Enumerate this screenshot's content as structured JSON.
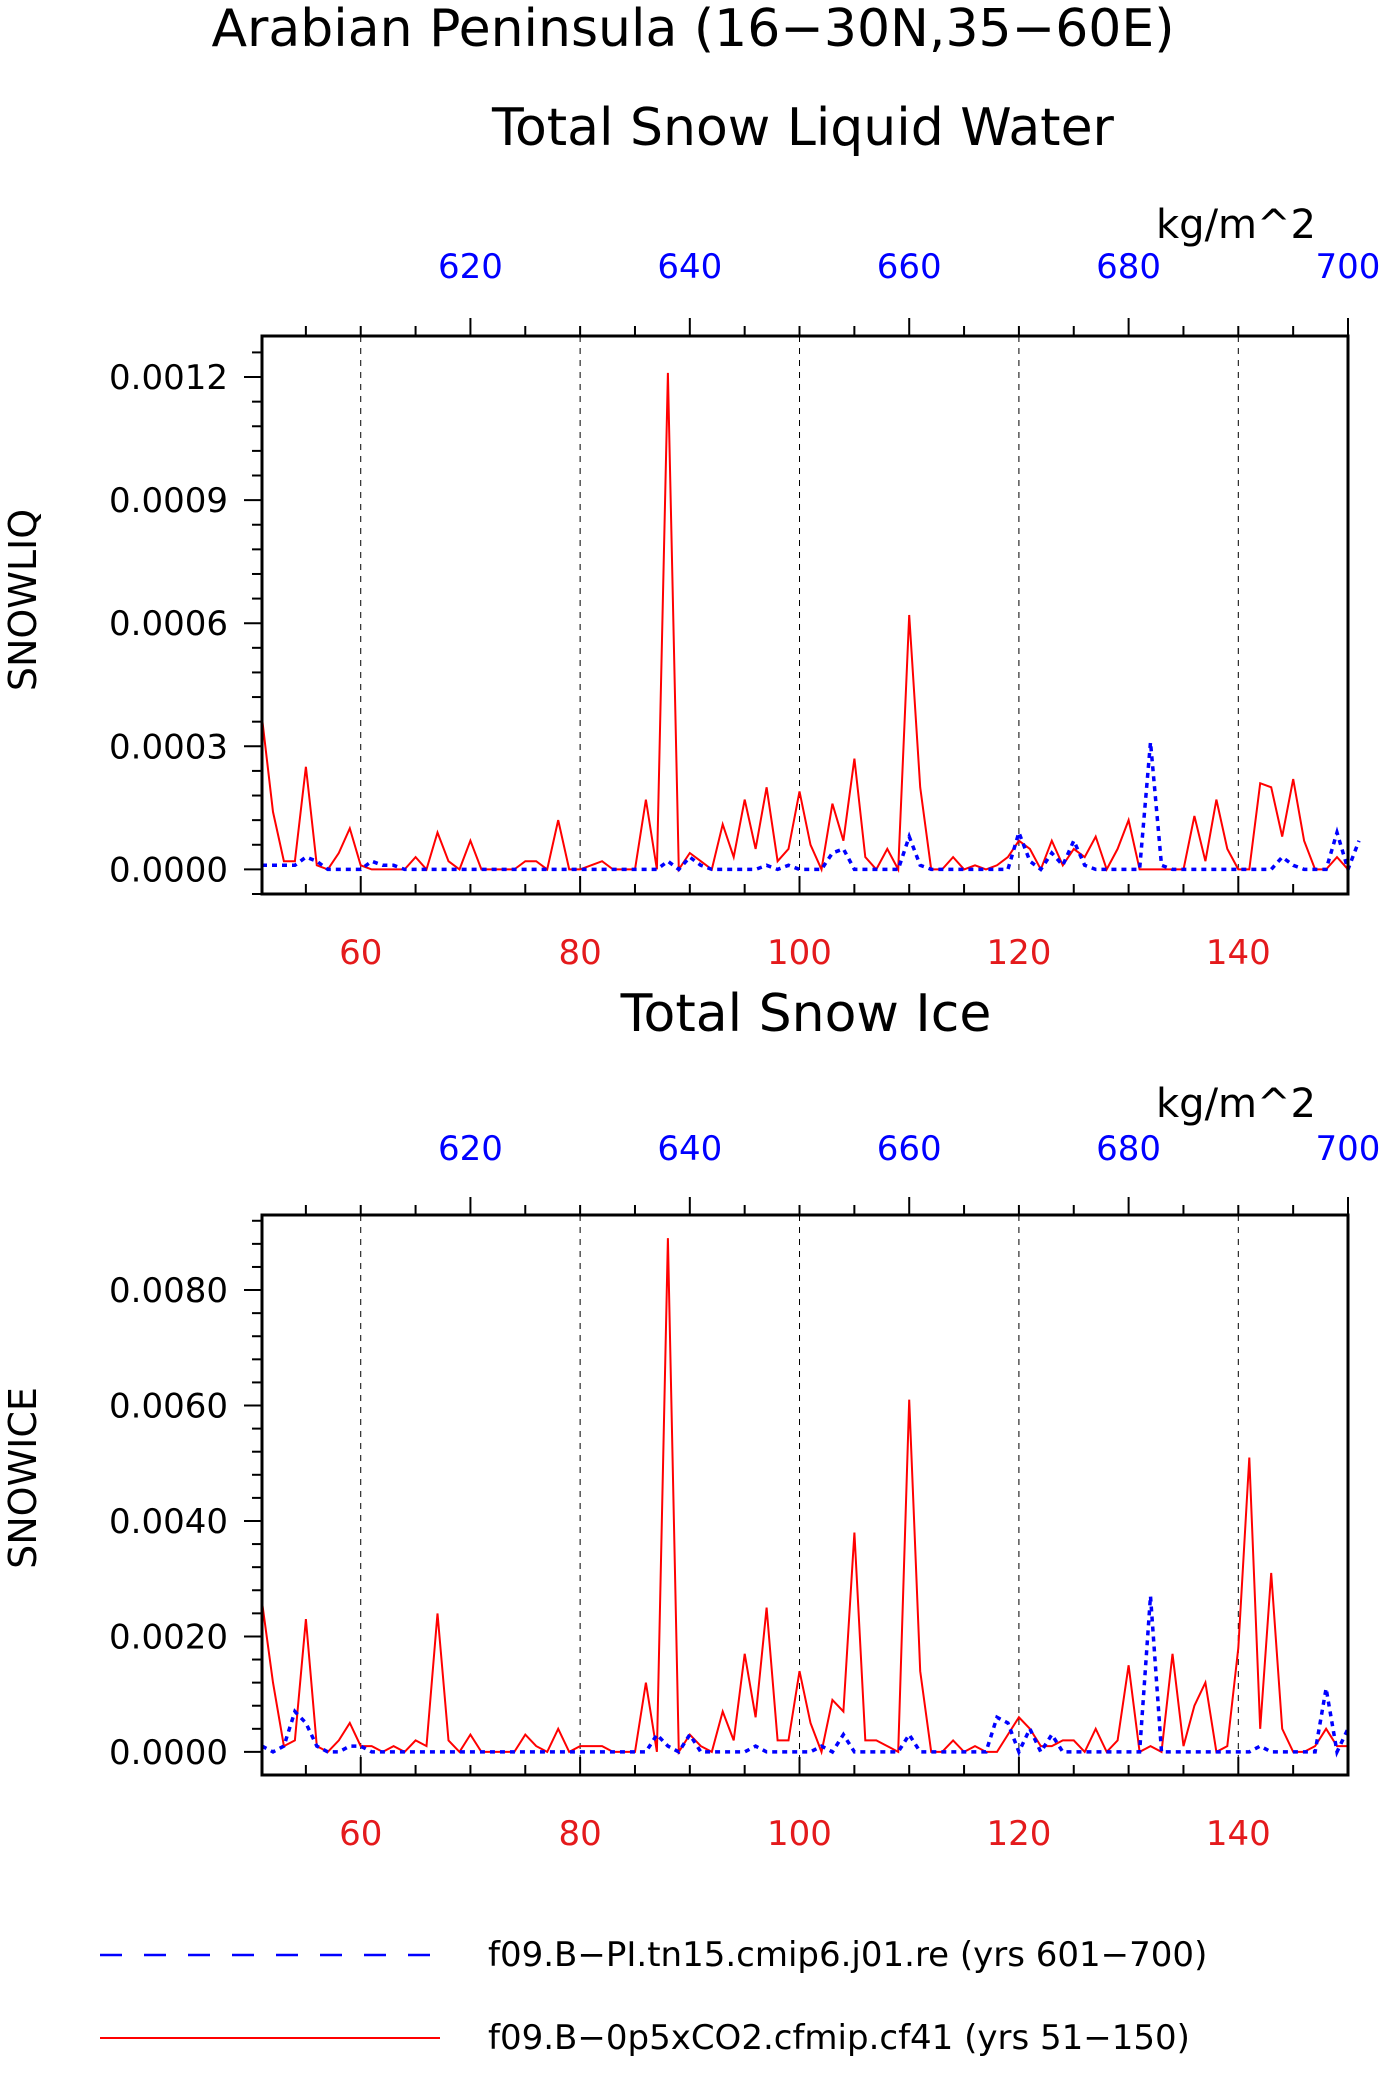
{
  "figure": {
    "title_line1": "Arabian Peninsula (16−30N,35−60E)",
    "colors": {
      "bottom_axis": "#e41a1c",
      "top_axis": "#0000ff",
      "red_series": "#ff0000",
      "blue_series": "#0000ff"
    }
  },
  "chart_data": [
    {
      "type": "line",
      "title": "Total Snow Liquid Water",
      "ylabel": "SNOWLIQ",
      "units": "kg/m^2",
      "xlim_bottom": [
        51,
        150
      ],
      "xlim_top": [
        601,
        700
      ],
      "ylim": [
        -6e-05,
        0.0013
      ],
      "x_ticks_bottom": [
        "60",
        "80",
        "100",
        "120",
        "140"
      ],
      "x_ticks_top": [
        "620",
        "640",
        "660",
        "680",
        "700"
      ],
      "y_ticks": [
        "0.0000",
        "0.0003",
        "0.0006",
        "0.0009",
        "0.0012"
      ],
      "grid": "vertical dashed at major bottom-axis ticks",
      "series": [
        {
          "name": "f09.B−0p5xCO2.cfmip.cf41 (yrs 51−150)",
          "x_start": 51,
          "values": [
            0.00037,
            0.00014,
            2e-05,
            2e-05,
            0.00025,
            1e-05,
            0.0,
            4e-05,
            0.0001,
            1e-05,
            0.0,
            0.0,
            0.0,
            0.0,
            3e-05,
            0.0,
            9e-05,
            2e-05,
            0.0,
            7e-05,
            0.0,
            0.0,
            0.0,
            0.0,
            2e-05,
            2e-05,
            0.0,
            0.00012,
            0.0,
            0.0,
            1e-05,
            2e-05,
            0.0,
            0.0,
            0.0,
            0.00017,
            0.0,
            0.00121,
            0.0,
            4e-05,
            2e-05,
            0.0,
            0.00011,
            3e-05,
            0.00017,
            5e-05,
            0.0002,
            2e-05,
            5e-05,
            0.00019,
            6e-05,
            0.0,
            0.00016,
            7e-05,
            0.00027,
            3e-05,
            0.0,
            5e-05,
            0.0,
            0.00062,
            0.0002,
            0.0,
            0.0,
            3e-05,
            0.0,
            1e-05,
            0.0,
            1e-05,
            3e-05,
            7e-05,
            5e-05,
            0.0,
            7e-05,
            1e-05,
            5e-05,
            3e-05,
            8e-05,
            0.0,
            5e-05,
            0.00012,
            0.0,
            0.0,
            0.0,
            0.0,
            0.0,
            0.00013,
            2e-05,
            0.00017,
            5e-05,
            0.0,
            0.0,
            0.00021,
            0.0002,
            8e-05,
            0.00022,
            7e-05,
            0.0,
            0.0,
            3e-05,
            0.0
          ]
        },
        {
          "name": "f09.B−PI.tn15.cmip6.j01.re (yrs 601−700)",
          "x_start": 601,
          "values": [
            1e-05,
            1e-05,
            1e-05,
            1e-05,
            3e-05,
            2e-05,
            0.0,
            0.0,
            0.0,
            0.0,
            2e-05,
            1e-05,
            1e-05,
            0.0,
            0.0,
            0.0,
            0.0,
            0.0,
            0.0,
            0.0,
            0.0,
            0.0,
            0.0,
            0.0,
            0.0,
            0.0,
            0.0,
            0.0,
            0.0,
            0.0,
            0.0,
            0.0,
            0.0,
            0.0,
            0.0,
            0.0,
            0.0,
            2e-05,
            0.0,
            3e-05,
            1e-05,
            0.0,
            0.0,
            0.0,
            0.0,
            0.0,
            1e-05,
            0.0,
            1e-05,
            0.0,
            0.0,
            0.0,
            4e-05,
            5e-05,
            0.0,
            0.0,
            0.0,
            0.0,
            0.0,
            8e-05,
            1e-05,
            0.0,
            0.0,
            0.0,
            0.0,
            0.0,
            0.0,
            0.0,
            0.0,
            9e-05,
            2e-05,
            0.0,
            4e-05,
            1e-05,
            7e-05,
            1e-05,
            0.0,
            0.0,
            0.0,
            0.0,
            0.0,
            0.00031,
            1e-05,
            0.0,
            0.0,
            0.0,
            0.0,
            0.0,
            0.0,
            0.0,
            0.0,
            0.0,
            0.0,
            3e-05,
            1e-05,
            0.0,
            0.0,
            0.0,
            9e-05,
            0.0,
            7e-05
          ]
        }
      ]
    },
    {
      "type": "line",
      "title": "Total Snow Ice",
      "ylabel": "SNOWICE",
      "units": "kg/m^2",
      "xlim_bottom": [
        51,
        150
      ],
      "xlim_top": [
        601,
        700
      ],
      "ylim": [
        -0.0004,
        0.0093
      ],
      "x_ticks_bottom": [
        "60",
        "80",
        "100",
        "120",
        "140"
      ],
      "x_ticks_top": [
        "620",
        "640",
        "660",
        "680",
        "700"
      ],
      "y_ticks": [
        "0.0000",
        "0.0020",
        "0.0040",
        "0.0060",
        "0.0080"
      ],
      "grid": "vertical dashed at major bottom-axis ticks",
      "series": [
        {
          "name": "f09.B−0p5xCO2.cfmip.cf41 (yrs 51−150)",
          "x_start": 51,
          "values": [
            0.0026,
            0.0012,
            0.0001,
            0.0002,
            0.0023,
            0.0001,
            0.0,
            0.0002,
            0.0005,
            0.0001,
            0.0001,
            0.0,
            0.0001,
            0.0,
            0.0002,
            0.0001,
            0.0024,
            0.0002,
            0.0,
            0.0003,
            0.0,
            0.0,
            0.0,
            0.0,
            0.0003,
            0.0001,
            0.0,
            0.0004,
            0.0,
            0.0001,
            0.0001,
            0.0001,
            0.0,
            0.0,
            0.0,
            0.0012,
            0.0,
            0.0089,
            0.0,
            0.0003,
            0.0001,
            0.0,
            0.0007,
            0.0002,
            0.0017,
            0.0006,
            0.0025,
            0.0002,
            0.0002,
            0.0014,
            0.0005,
            0.0,
            0.0009,
            0.0007,
            0.0038,
            0.0002,
            0.0002,
            0.0001,
            0.0,
            0.0061,
            0.0014,
            0.0,
            0.0,
            0.0002,
            0.0,
            0.0001,
            0.0,
            0.0,
            0.0003,
            0.0006,
            0.0004,
            0.0001,
            0.0001,
            0.0002,
            0.0002,
            0.0,
            0.0004,
            0.0,
            0.0002,
            0.0015,
            0.0,
            0.0001,
            0.0,
            0.0017,
            0.0001,
            0.0008,
            0.0012,
            0.0,
            0.0001,
            0.0018,
            0.0051,
            0.0004,
            0.0031,
            0.0004,
            0.0,
            0.0,
            0.0001,
            0.0004,
            0.0001,
            0.0001
          ]
        },
        {
          "name": "f09.B−PI.tn15.cmip6.j01.re (yrs 601−700)",
          "x_start": 601,
          "values": [
            0.0001,
            0.0,
            0.0001,
            0.0007,
            0.0005,
            0.0001,
            0.0,
            0.0,
            0.0001,
            0.0001,
            0.0,
            0.0,
            0.0,
            0.0,
            0.0,
            0.0,
            0.0,
            0.0,
            0.0,
            0.0,
            0.0,
            0.0,
            0.0,
            0.0,
            0.0,
            0.0,
            0.0,
            0.0,
            0.0,
            0.0,
            0.0,
            0.0,
            0.0,
            0.0,
            0.0,
            0.0,
            0.0003,
            0.0001,
            0.0,
            0.0003,
            0.0,
            0.0,
            0.0,
            0.0,
            0.0,
            0.0001,
            0.0,
            0.0,
            0.0,
            0.0,
            0.0,
            0.0001,
            0.0,
            0.0003,
            0.0,
            0.0,
            0.0,
            0.0,
            0.0,
            0.0003,
            0.0,
            0.0,
            0.0,
            0.0,
            0.0,
            0.0,
            0.0,
            0.0006,
            0.0005,
            0.0,
            0.0004,
            0.0,
            0.0003,
            0.0,
            0.0,
            0.0,
            0.0,
            0.0,
            0.0,
            0.0,
            0.0,
            0.0027,
            0.0,
            0.0,
            0.0,
            0.0,
            0.0,
            0.0,
            0.0,
            0.0,
            0.0,
            0.0001,
            0.0,
            0.0,
            0.0,
            0.0,
            0.0,
            0.0011,
            0.0,
            0.0004
          ]
        }
      ]
    }
  ],
  "legend": [
    {
      "label": "f09.B−PI.tn15.cmip6.j01.re (yrs 601−700)",
      "style": "dashed",
      "color": "#0000ff"
    },
    {
      "label": "f09.B−0p5xCO2.cfmip.cf41 (yrs 51−150)",
      "style": "solid",
      "color": "#ff0000"
    }
  ]
}
